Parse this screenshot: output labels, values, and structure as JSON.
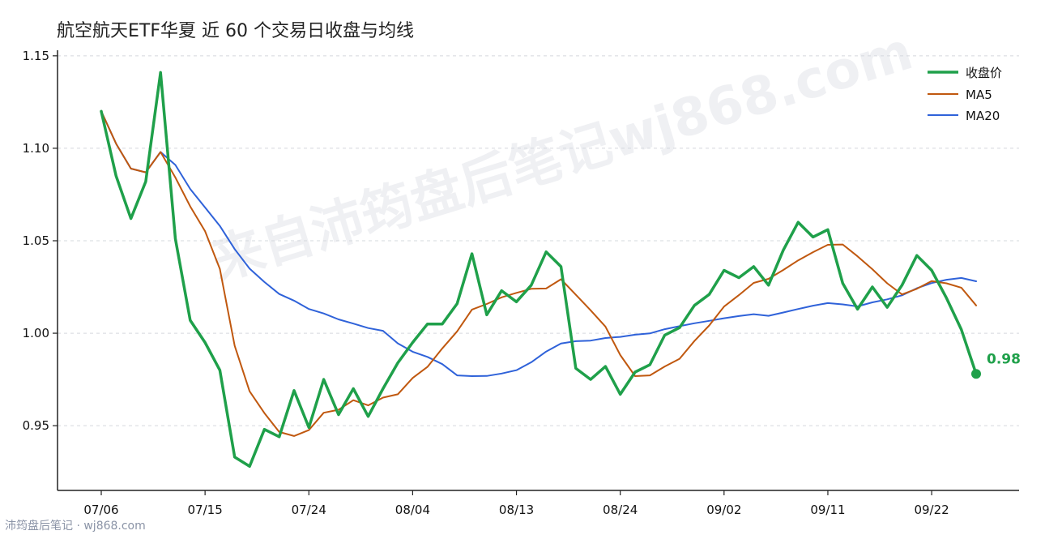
{
  "chart_data": {
    "type": "line",
    "title": "航空航天ETF华夏 近 60 个交易日收盘与均线",
    "x_tick_labels": [
      "07/06",
      "07/15",
      "07/24",
      "08/04",
      "08/13",
      "08/24",
      "09/02",
      "09/11",
      "09/22"
    ],
    "x_tick_indices": [
      0,
      7,
      14,
      21,
      28,
      35,
      42,
      49,
      56
    ],
    "ylim": [
      0.915,
      1.153
    ],
    "y_ticks": [
      0.95,
      1.0,
      1.05,
      1.1,
      1.15
    ],
    "y_tick_labels": [
      "0.95",
      "1.00",
      "1.05",
      "1.10",
      "1.15"
    ],
    "grid": true,
    "legend_position": "top-right",
    "colors": {
      "close": "#1fa04a",
      "ma5": "#c0580f",
      "ma20": "#2f62d9"
    },
    "series": [
      {
        "name": "收盘价",
        "key": "close",
        "values": [
          1.12,
          1.085,
          1.062,
          1.082,
          1.141,
          1.051,
          1.007,
          0.995,
          0.98,
          0.933,
          0.928,
          0.948,
          0.944,
          0.969,
          0.949,
          0.975,
          0.956,
          0.97,
          0.955,
          0.97,
          0.984,
          0.995,
          1.005,
          1.005,
          1.016,
          1.043,
          1.01,
          1.023,
          1.017,
          1.026,
          1.044,
          1.036,
          0.981,
          0.975,
          0.982,
          0.967,
          0.979,
          0.983,
          0.999,
          1.003,
          1.015,
          1.021,
          1.034,
          1.03,
          1.036,
          1.026,
          1.045,
          1.06,
          1.052,
          1.056,
          1.027,
          1.013,
          1.025,
          1.014,
          1.026,
          1.042,
          1.034,
          1.019,
          1.002,
          0.978
        ]
      },
      {
        "name": "MA5",
        "key": "ma5",
        "values": [
          1.12,
          1.1025,
          1.089,
          1.087,
          1.098,
          1.0842,
          1.0686,
          1.0552,
          1.0348,
          0.9932,
          0.9686,
          0.9568,
          0.9466,
          0.9444,
          0.9476,
          0.957,
          0.9586,
          0.9638,
          0.961,
          0.9652,
          0.967,
          0.9758,
          0.9818,
          0.9918,
          1.001,
          1.0128,
          1.0158,
          1.0194,
          1.0218,
          1.024,
          1.0242,
          1.0292,
          1.0208,
          1.0124,
          1.0036,
          0.9882,
          0.9768,
          0.9772,
          0.982,
          0.9862,
          0.9958,
          1.0042,
          1.0144,
          1.0206,
          1.0272,
          1.0294,
          1.0342,
          1.0394,
          1.0438,
          1.0478,
          1.048,
          1.0416,
          1.0346,
          1.027,
          1.021,
          1.024,
          1.0282,
          1.027,
          1.0246,
          1.015
        ]
      },
      {
        "name": "MA20",
        "key": "ma20",
        "values": [
          1.12,
          1.1025,
          1.089,
          1.087,
          1.098,
          1.091,
          1.078,
          1.068,
          1.058,
          1.0455,
          1.0349,
          1.0277,
          1.0212,
          1.0176,
          1.0131,
          1.0107,
          1.0075,
          1.0052,
          1.0028,
          1.0013,
          0.9945,
          0.99,
          0.9872,
          0.9833,
          0.9772,
          0.9768,
          0.9769,
          0.9782,
          0.98,
          0.9843,
          0.9901,
          0.9944,
          0.9957,
          0.996,
          0.9974,
          0.998,
          0.9992,
          0.9999,
          1.0022,
          1.0038,
          1.0054,
          1.0067,
          1.0081,
          1.0093,
          1.0103,
          1.0094,
          1.0112,
          1.0131,
          1.0149,
          1.0163,
          1.0156,
          1.0145,
          1.0167,
          1.0183,
          1.0205,
          1.0243,
          1.0271,
          1.0289,
          1.0299,
          1.0281
        ]
      }
    ],
    "end_label": "0.98"
  },
  "watermark": "来自沛筠盘后笔记wj868.com",
  "footer": "沛筠盘后笔记 · wj868.com"
}
